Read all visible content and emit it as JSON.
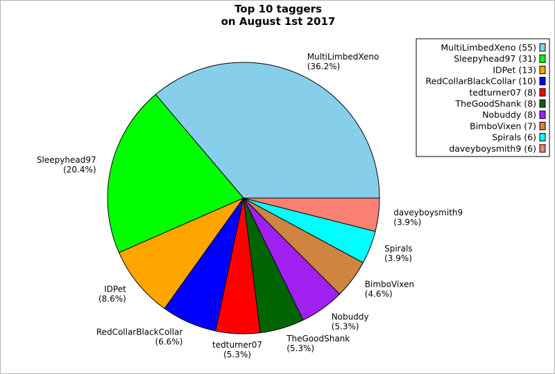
{
  "chart_data": {
    "type": "pie",
    "title": "Top 10 taggers",
    "subtitle": "on August 1st 2017",
    "legend_position": "top-right",
    "slices": [
      {
        "name": "MultiLimbedXeno",
        "value": 55,
        "percent": "36.2%",
        "legend": "MultiLimbedXeno (55)",
        "color": "#87ceeb"
      },
      {
        "name": "Sleepyhead97",
        "value": 31,
        "percent": "20.4%",
        "legend": "Sleepyhead97 (31)",
        "color": "#00ff00"
      },
      {
        "name": "IDPet",
        "value": 13,
        "percent": "8.6%",
        "legend": "IDPet (13)",
        "color": "#ffa500"
      },
      {
        "name": "RedCollarBlackCollar",
        "value": 10,
        "percent": "6.6%",
        "legend": "RedCollarBlackCollar (10)",
        "color": "#0000ff"
      },
      {
        "name": "tedturner07",
        "value": 8,
        "percent": "5.3%",
        "legend": "tedturner07 (8)",
        "color": "#ff0000"
      },
      {
        "name": "TheGoodShank",
        "value": 8,
        "percent": "5.3%",
        "legend": "TheGoodShank (8)",
        "color": "#006400"
      },
      {
        "name": "Nobuddy",
        "value": 8,
        "percent": "5.3%",
        "legend": "Nobuddy (8)",
        "color": "#a020f0"
      },
      {
        "name": "BimboVixen",
        "value": 7,
        "percent": "4.6%",
        "legend": "BimboVixen (7)",
        "color": "#cd853f"
      },
      {
        "name": "Spirals",
        "value": 6,
        "percent": "3.9%",
        "legend": "Spirals (6)",
        "color": "#00ffff"
      },
      {
        "name": "daveyboysmith9",
        "value": 6,
        "percent": "3.9%",
        "legend": "daveyboysmith9 (6)",
        "color": "#fa8072"
      }
    ]
  }
}
